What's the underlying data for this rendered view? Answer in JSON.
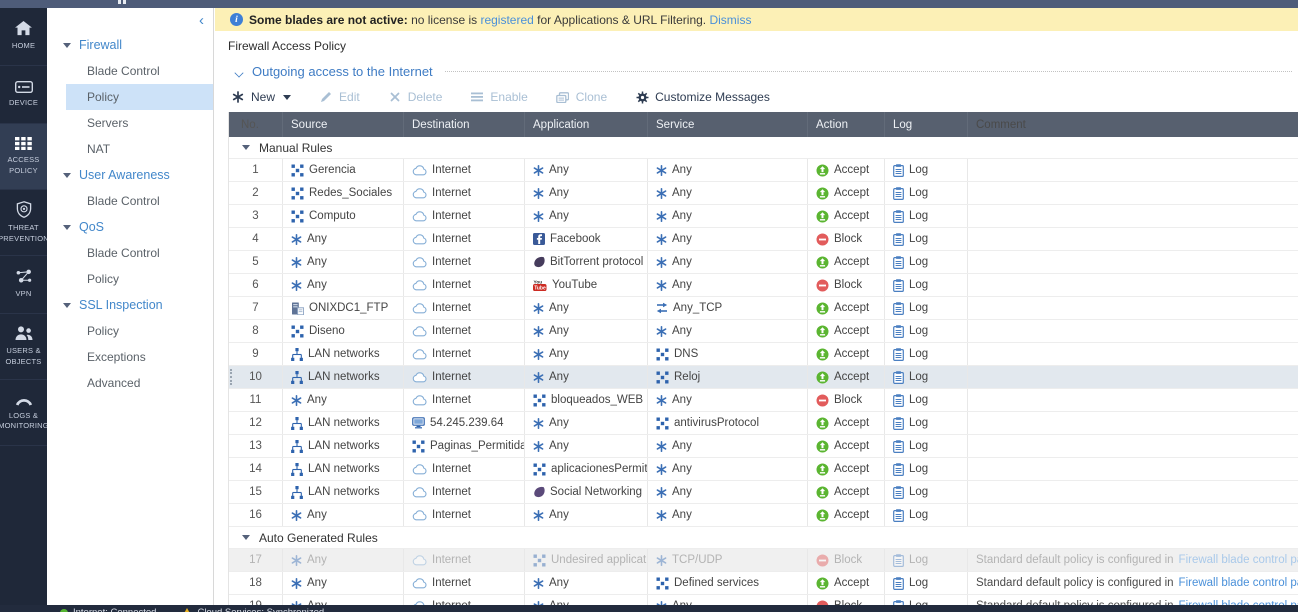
{
  "sidebar": {
    "items": [
      {
        "label": "HOME",
        "icon": "home-icon",
        "active": false
      },
      {
        "label": "DEVICE",
        "icon": "device-icon",
        "active": false
      },
      {
        "label": "ACCESS\nPOLICY",
        "icon": "access-policy-icon",
        "active": true
      },
      {
        "label": "THREAT\nPREVENTION",
        "icon": "threat-prevention-icon",
        "active": false
      },
      {
        "label": "VPN",
        "icon": "vpn-icon",
        "active": false
      },
      {
        "label": "USERS &\nOBJECTS",
        "icon": "users-objects-icon",
        "active": false
      },
      {
        "label": "LOGS &\nMONITORING",
        "icon": "logs-monitoring-icon",
        "active": false
      }
    ]
  },
  "nav": {
    "collapse": "‹",
    "sections": [
      {
        "label": "Firewall",
        "items": [
          {
            "label": "Blade Control"
          },
          {
            "label": "Policy",
            "selected": true
          },
          {
            "label": "Servers"
          },
          {
            "label": "NAT"
          }
        ]
      },
      {
        "label": "User Awareness",
        "items": [
          {
            "label": "Blade Control"
          }
        ]
      },
      {
        "label": "QoS",
        "items": [
          {
            "label": "Blade Control"
          },
          {
            "label": "Policy"
          }
        ]
      },
      {
        "label": "SSL Inspection",
        "items": [
          {
            "label": "Policy"
          },
          {
            "label": "Exceptions"
          },
          {
            "label": "Advanced"
          }
        ]
      }
    ]
  },
  "notification": {
    "icon": "info-icon",
    "bold": "Some blades are not active:",
    "pre_link": " no license is ",
    "link": "registered",
    "post_link": " for Applications & URL Filtering. ",
    "dismiss": "Dismiss"
  },
  "page": {
    "title": "Firewall Access Policy",
    "section_label": "Outgoing access to the Internet"
  },
  "toolbar": {
    "new_label": "New",
    "edit_label": "Edit",
    "delete_label": "Delete",
    "enable_label": "Enable",
    "clone_label": "Clone",
    "customize_label": "Customize Messages"
  },
  "table": {
    "columns": [
      "No.",
      "Source",
      "Destination",
      "Application",
      "Service",
      "Action",
      "Log",
      "Comment"
    ],
    "groups": {
      "manual": "Manual Rules",
      "auto": "Auto Generated Rules"
    },
    "rows": [
      {
        "no": "1",
        "group": "manual",
        "state": "normal",
        "source": {
          "icon": "group",
          "label": "Gerencia"
        },
        "destination": {
          "icon": "cloud",
          "label": "Internet"
        },
        "application": {
          "icon": "any",
          "label": "Any"
        },
        "service": {
          "icon": "any",
          "label": "Any"
        },
        "action": {
          "icon": "accept",
          "label": "Accept"
        },
        "log": {
          "icon": "log",
          "label": "Log"
        },
        "comment": null
      },
      {
        "no": "2",
        "group": "manual",
        "state": "normal",
        "source": {
          "icon": "group",
          "label": "Redes_Sociales"
        },
        "destination": {
          "icon": "cloud",
          "label": "Internet"
        },
        "application": {
          "icon": "any",
          "label": "Any"
        },
        "service": {
          "icon": "any",
          "label": "Any"
        },
        "action": {
          "icon": "accept",
          "label": "Accept"
        },
        "log": {
          "icon": "log",
          "label": "Log"
        },
        "comment": null
      },
      {
        "no": "3",
        "group": "manual",
        "state": "normal",
        "source": {
          "icon": "group",
          "label": "Computo"
        },
        "destination": {
          "icon": "cloud",
          "label": "Internet"
        },
        "application": {
          "icon": "any",
          "label": "Any"
        },
        "service": {
          "icon": "any",
          "label": "Any"
        },
        "action": {
          "icon": "accept",
          "label": "Accept"
        },
        "log": {
          "icon": "log",
          "label": "Log"
        },
        "comment": null
      },
      {
        "no": "4",
        "group": "manual",
        "state": "normal",
        "source": {
          "icon": "any",
          "label": "Any"
        },
        "destination": {
          "icon": "cloud",
          "label": "Internet"
        },
        "application": {
          "icon": "facebook",
          "label": "Facebook"
        },
        "service": {
          "icon": "any",
          "label": "Any"
        },
        "action": {
          "icon": "block",
          "label": "Block"
        },
        "log": {
          "icon": "log",
          "label": "Log"
        },
        "comment": null
      },
      {
        "no": "5",
        "group": "manual",
        "state": "normal",
        "source": {
          "icon": "any",
          "label": "Any"
        },
        "destination": {
          "icon": "cloud",
          "label": "Internet"
        },
        "application": {
          "icon": "app",
          "label": "BitTorrent protocol"
        },
        "service": {
          "icon": "any",
          "label": "Any"
        },
        "action": {
          "icon": "accept",
          "label": "Accept"
        },
        "log": {
          "icon": "log",
          "label": "Log"
        },
        "comment": null
      },
      {
        "no": "6",
        "group": "manual",
        "state": "normal",
        "source": {
          "icon": "any",
          "label": "Any"
        },
        "destination": {
          "icon": "cloud",
          "label": "Internet"
        },
        "application": {
          "icon": "youtube",
          "label": "YouTube"
        },
        "service": {
          "icon": "any",
          "label": "Any"
        },
        "action": {
          "icon": "block",
          "label": "Block"
        },
        "log": {
          "icon": "log",
          "label": "Log"
        },
        "comment": null
      },
      {
        "no": "7",
        "group": "manual",
        "state": "normal",
        "source": {
          "icon": "server",
          "label": "ONIXDC1_FTP"
        },
        "destination": {
          "icon": "cloud",
          "label": "Internet"
        },
        "application": {
          "icon": "any",
          "label": "Any"
        },
        "service": {
          "icon": "tcp",
          "label": "Any_TCP"
        },
        "action": {
          "icon": "accept",
          "label": "Accept"
        },
        "log": {
          "icon": "log",
          "label": "Log"
        },
        "comment": null
      },
      {
        "no": "8",
        "group": "manual",
        "state": "normal",
        "source": {
          "icon": "group",
          "label": "Diseno"
        },
        "destination": {
          "icon": "cloud",
          "label": "Internet"
        },
        "application": {
          "icon": "any",
          "label": "Any"
        },
        "service": {
          "icon": "any",
          "label": "Any"
        },
        "action": {
          "icon": "accept",
          "label": "Accept"
        },
        "log": {
          "icon": "log",
          "label": "Log"
        },
        "comment": null
      },
      {
        "no": "9",
        "group": "manual",
        "state": "normal",
        "source": {
          "icon": "lan",
          "label": "LAN networks"
        },
        "destination": {
          "icon": "cloud",
          "label": "Internet"
        },
        "application": {
          "icon": "any",
          "label": "Any"
        },
        "service": {
          "icon": "group",
          "label": "DNS"
        },
        "action": {
          "icon": "accept",
          "label": "Accept"
        },
        "log": {
          "icon": "log",
          "label": "Log"
        },
        "comment": null
      },
      {
        "no": "10",
        "group": "manual",
        "state": "selected",
        "source": {
          "icon": "lan",
          "label": "LAN networks"
        },
        "destination": {
          "icon": "cloud",
          "label": "Internet"
        },
        "application": {
          "icon": "any",
          "label": "Any"
        },
        "service": {
          "icon": "group",
          "label": "Reloj"
        },
        "action": {
          "icon": "accept",
          "label": "Accept"
        },
        "log": {
          "icon": "log",
          "label": "Log"
        },
        "comment": null
      },
      {
        "no": "11",
        "group": "manual",
        "state": "normal",
        "source": {
          "icon": "any",
          "label": "Any"
        },
        "destination": {
          "icon": "cloud",
          "label": "Internet"
        },
        "application": {
          "icon": "group",
          "label": "bloqueados_WEB"
        },
        "service": {
          "icon": "any",
          "label": "Any"
        },
        "action": {
          "icon": "block",
          "label": "Block"
        },
        "log": {
          "icon": "log",
          "label": "Log"
        },
        "comment": null
      },
      {
        "no": "12",
        "group": "manual",
        "state": "normal",
        "source": {
          "icon": "lan",
          "label": "LAN networks"
        },
        "destination": {
          "icon": "host",
          "label": "54.245.239.64"
        },
        "application": {
          "icon": "any",
          "label": "Any"
        },
        "service": {
          "icon": "group",
          "label": "antivirusProtocol"
        },
        "action": {
          "icon": "accept",
          "label": "Accept"
        },
        "log": {
          "icon": "log",
          "label": "Log"
        },
        "comment": null
      },
      {
        "no": "13",
        "group": "manual",
        "state": "normal",
        "source": {
          "icon": "lan",
          "label": "LAN networks"
        },
        "destination": {
          "icon": "group",
          "label": "Paginas_Permitidas"
        },
        "application": {
          "icon": "any",
          "label": "Any"
        },
        "service": {
          "icon": "any",
          "label": "Any"
        },
        "action": {
          "icon": "accept",
          "label": "Accept"
        },
        "log": {
          "icon": "log",
          "label": "Log"
        },
        "comment": null
      },
      {
        "no": "14",
        "group": "manual",
        "state": "normal",
        "source": {
          "icon": "lan",
          "label": "LAN networks"
        },
        "destination": {
          "icon": "cloud",
          "label": "Internet"
        },
        "application": {
          "icon": "group",
          "label": "aplicacionesPermiti..."
        },
        "service": {
          "icon": "any",
          "label": "Any"
        },
        "action": {
          "icon": "accept",
          "label": "Accept"
        },
        "log": {
          "icon": "log",
          "label": "Log"
        },
        "comment": null
      },
      {
        "no": "15",
        "group": "manual",
        "state": "normal",
        "source": {
          "icon": "lan",
          "label": "LAN networks"
        },
        "destination": {
          "icon": "cloud",
          "label": "Internet"
        },
        "application": {
          "icon": "category",
          "label": "Social Networking"
        },
        "service": {
          "icon": "any",
          "label": "Any"
        },
        "action": {
          "icon": "accept",
          "label": "Accept"
        },
        "log": {
          "icon": "log",
          "label": "Log"
        },
        "comment": null
      },
      {
        "no": "16",
        "group": "manual",
        "state": "normal",
        "source": {
          "icon": "any",
          "label": "Any"
        },
        "destination": {
          "icon": "cloud",
          "label": "Internet"
        },
        "application": {
          "icon": "any",
          "label": "Any"
        },
        "service": {
          "icon": "any",
          "label": "Any"
        },
        "action": {
          "icon": "accept",
          "label": "Accept"
        },
        "log": {
          "icon": "log",
          "label": "Log"
        },
        "comment": null
      },
      {
        "no": "17",
        "group": "auto",
        "state": "disabled",
        "source": {
          "icon": "any",
          "label": "Any"
        },
        "destination": {
          "icon": "cloud",
          "label": "Internet"
        },
        "application": {
          "icon": "group",
          "label": "Undesired applicati..."
        },
        "service": {
          "icon": "any",
          "label": "TCP/UDP"
        },
        "action": {
          "icon": "block",
          "label": "Block"
        },
        "log": {
          "icon": "log",
          "label": "Log"
        },
        "comment": {
          "text": "Standard default policy is configured in ",
          "link": "Firewall blade control page",
          "suffix": "."
        }
      },
      {
        "no": "18",
        "group": "auto",
        "state": "normal",
        "source": {
          "icon": "any",
          "label": "Any"
        },
        "destination": {
          "icon": "cloud",
          "label": "Internet"
        },
        "application": {
          "icon": "any",
          "label": "Any"
        },
        "service": {
          "icon": "group",
          "label": "Defined services"
        },
        "action": {
          "icon": "accept",
          "label": "Accept"
        },
        "log": {
          "icon": "log",
          "label": "Log"
        },
        "comment": {
          "text": "Standard default policy is configured in ",
          "link": "Firewall blade control page",
          "suffix": ""
        }
      },
      {
        "no": "19",
        "group": "auto",
        "state": "normal",
        "source": {
          "icon": "any",
          "label": "Any"
        },
        "destination": {
          "icon": "cloud",
          "label": "Internet"
        },
        "application": {
          "icon": "any",
          "label": "Any"
        },
        "service": {
          "icon": "any",
          "label": "Any"
        },
        "action": {
          "icon": "block",
          "label": "Block"
        },
        "log": {
          "icon": "log",
          "label": "Log"
        },
        "comment": {
          "text": "Standard default policy is configured in ",
          "link": "Firewall blade control page",
          "suffix": ""
        }
      }
    ]
  },
  "statusbar": {
    "internet": "Internet: Connected",
    "cloud_services": "Cloud Services: Synchronized"
  },
  "colors": {
    "accent_blue": "#4287ca",
    "link_blue": "#4a90d9",
    "accept_green": "#5bb531",
    "block_red": "#e25c5c",
    "table_header_slate": "#57606f",
    "notification_yellow": "#fcf0b6",
    "selected_row": "#e2e8ee",
    "sidebar_navy": "#1f2839"
  }
}
